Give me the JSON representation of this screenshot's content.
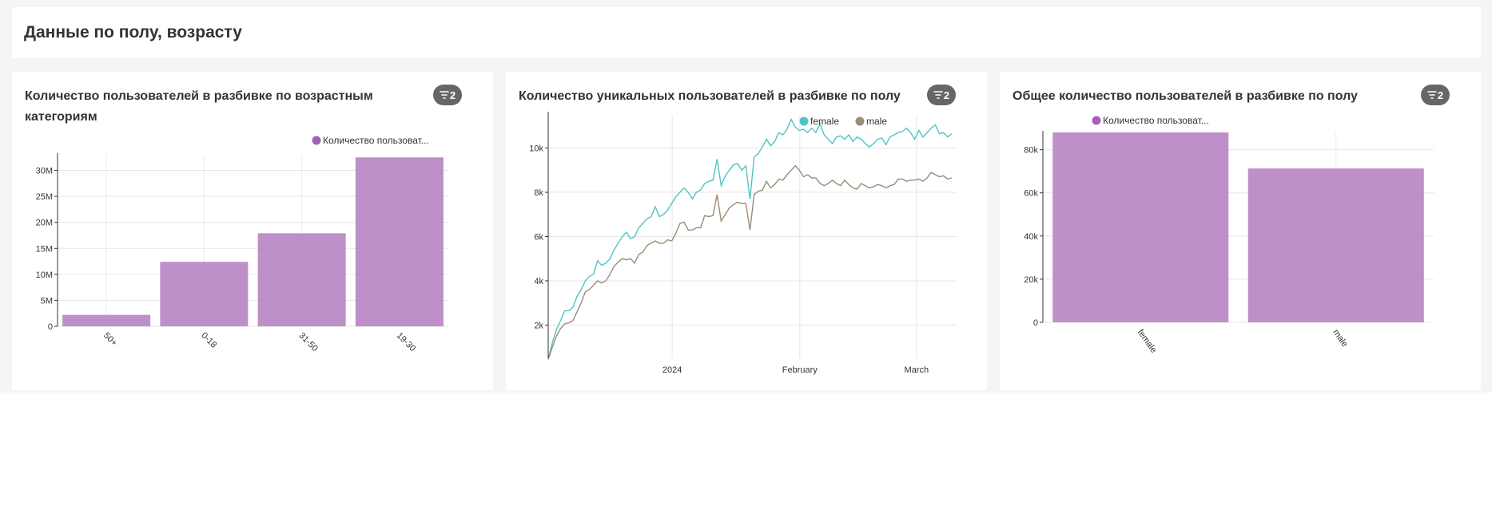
{
  "header": {
    "title": "Данные по полу, возрасту"
  },
  "colors": {
    "bar": "#b57fc2",
    "female": "#4fc4c4",
    "male": "#9b8b78",
    "legend_bar": "#a262bb"
  },
  "cards": [
    {
      "title": "Количество пользователей в разбивке по возрастным категориям",
      "filter_count": "2",
      "filter_icon": "filter-icon"
    },
    {
      "title": "Количество уникальных пользователей в разбивке по полу",
      "filter_count": "2",
      "filter_icon": "filter-icon"
    },
    {
      "title": "Общее количество пользователей в разбивке по полу",
      "filter_count": "2",
      "filter_icon": "filter-icon"
    }
  ],
  "chart_data": [
    {
      "type": "bar",
      "categories": [
        "50+",
        "0-18",
        "31-50",
        "19-30"
      ],
      "values": [
        2200000,
        12400000,
        17900000,
        32500000
      ],
      "legend": [
        "Количество пользоват..."
      ],
      "ylim": [
        0,
        33000000
      ],
      "yticks": [
        0,
        5000000,
        10000000,
        15000000,
        20000000,
        25000000,
        30000000
      ],
      "ytick_labels": [
        "0",
        "5M",
        "10M",
        "15M",
        "20M",
        "25M",
        "30M"
      ],
      "grid": true,
      "legend_position": "top-right"
    },
    {
      "type": "line",
      "legend": [
        "female",
        "male"
      ],
      "ylim": [
        500,
        11500
      ],
      "yticks": [
        2000,
        4000,
        6000,
        8000,
        10000
      ],
      "ytick_labels": [
        "2k",
        "4k",
        "6k",
        "8k",
        "10k"
      ],
      "xtick_labels": [
        "2024",
        "February",
        "March"
      ],
      "grid": true,
      "legend_position": "top-right",
      "series": [
        {
          "name": "female",
          "values": [
            450,
            1200,
            1800,
            2200,
            2650,
            2650,
            2800,
            3300,
            3600,
            4000,
            4200,
            4300,
            4900,
            4700,
            4800,
            5000,
            5400,
            5700,
            6000,
            6200,
            5900,
            6000,
            6400,
            6600,
            6800,
            6900,
            7350,
            6900,
            7000,
            7200,
            7500,
            7800,
            8000,
            8200,
            8000,
            7700,
            8000,
            8100,
            8400,
            8500,
            8550,
            9500,
            8300,
            8750,
            9000,
            9250,
            9300,
            9000,
            9200,
            7700,
            9600,
            9750,
            10050,
            10400,
            10100,
            10300,
            10700,
            10600,
            10850,
            11300,
            10950,
            10800,
            10850,
            10700,
            10900,
            10700,
            11100,
            10600,
            10400,
            10200,
            10500,
            10550,
            10400,
            10600,
            10300,
            10500,
            10400,
            10200,
            10050,
            10200,
            10400,
            10450,
            10150,
            10500,
            10600,
            10700,
            10750,
            10900,
            10700,
            10400,
            10800,
            10500,
            10700,
            10900,
            11050,
            10650,
            10700,
            10500,
            10650
          ]
        },
        {
          "name": "male",
          "values": [
            450,
            1000,
            1500,
            1850,
            2050,
            2100,
            2200,
            2600,
            3000,
            3500,
            3600,
            3800,
            4000,
            3900,
            4000,
            4300,
            4650,
            4850,
            5000,
            4950,
            5000,
            4800,
            5200,
            5300,
            5600,
            5700,
            5800,
            5700,
            5700,
            5850,
            5800,
            6150,
            6600,
            6650,
            6300,
            6300,
            6400,
            6400,
            6950,
            6900,
            6950,
            7900,
            6700,
            7000,
            7300,
            7450,
            7550,
            7500,
            7500,
            6300,
            7900,
            8050,
            8100,
            8500,
            8200,
            8350,
            8600,
            8550,
            8800,
            9000,
            9200,
            9000,
            8700,
            8800,
            8650,
            8650,
            8400,
            8300,
            8400,
            8550,
            8400,
            8300,
            8550,
            8350,
            8200,
            8150,
            8400,
            8300,
            8200,
            8250,
            8350,
            8300,
            8200,
            8300,
            8350,
            8600,
            8600,
            8500,
            8550,
            8550,
            8600,
            8500,
            8650,
            8900,
            8800,
            8700,
            8750,
            8600,
            8650
          ]
        }
      ]
    },
    {
      "type": "bar",
      "categories": [
        "female",
        "male"
      ],
      "values": [
        88000,
        71300
      ],
      "legend": [
        "Количество пользоват..."
      ],
      "ylim": [
        0,
        88000
      ],
      "yticks": [
        0,
        20000,
        40000,
        60000,
        80000
      ],
      "ytick_labels": [
        "0",
        "20k",
        "40k",
        "60k",
        "80k"
      ],
      "grid": true,
      "legend_position": "top-right"
    }
  ]
}
